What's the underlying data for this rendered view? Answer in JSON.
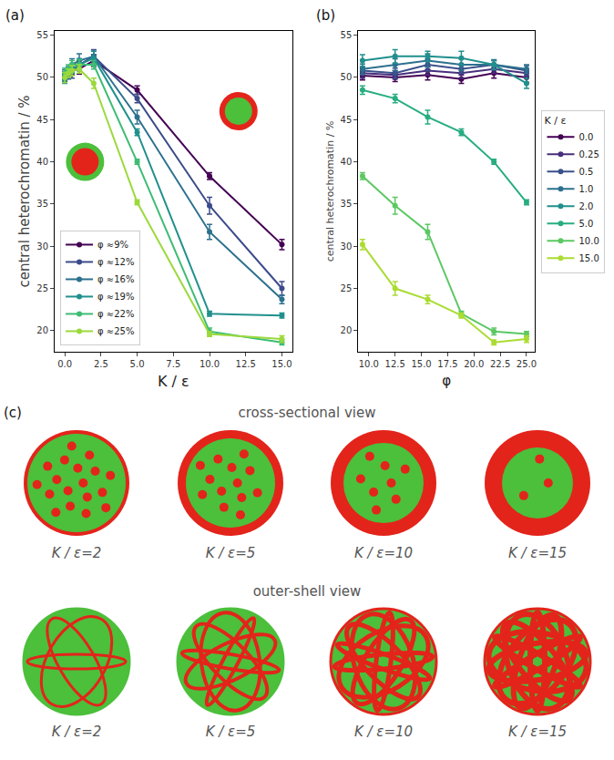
{
  "chart_data": [
    {
      "type": "line",
      "label": "(a)",
      "x_label": "K / ε",
      "y_label": "central heterochromatin / %",
      "x": [
        0,
        0.25,
        0.5,
        1,
        2,
        5,
        10,
        15
      ],
      "xlim": [
        -0.7,
        15.7
      ],
      "xticks": [
        {
          "value": 0,
          "label": "0.0"
        },
        2.5,
        {
          "value": 5,
          "label": "5.0"
        },
        7.5,
        {
          "value": 10,
          "label": "10.0"
        },
        12.5,
        {
          "value": 15,
          "label": "15.0"
        }
      ],
      "ylim": [
        17.5,
        55.5
      ],
      "yticks": [
        20,
        25,
        30,
        35,
        40,
        45,
        50,
        55
      ],
      "grid": false,
      "legend": "lower left",
      "marker": "circle",
      "line_style": "solid",
      "series": [
        {
          "name": "φ ≈9%",
          "color": "#440154",
          "values": [
            50.2,
            50.5,
            50.8,
            51.0,
            52.0,
            48.5,
            38.3,
            30.2
          ],
          "error": [
            0.5,
            0.6,
            0.5,
            0.6,
            0.7,
            0.5,
            0.4,
            0.6
          ]
        },
        {
          "name": "φ ≈12%",
          "color": "#3b4b8a",
          "values": [
            50.0,
            50.3,
            50.5,
            51.5,
            52.5,
            47.5,
            34.8,
            25.0
          ],
          "error": [
            0.5,
            0.5,
            0.6,
            0.7,
            0.8,
            0.5,
            1.0,
            0.8
          ]
        },
        {
          "name": "φ ≈16%",
          "color": "#2c718e",
          "values": [
            50.3,
            50.8,
            51.5,
            52.0,
            52.5,
            45.3,
            31.7,
            23.7
          ],
          "error": [
            0.6,
            0.5,
            0.7,
            0.8,
            0.6,
            0.8,
            0.9,
            0.5
          ]
        },
        {
          "name": "φ ≈19%",
          "color": "#21908d",
          "values": [
            49.8,
            50.5,
            51.0,
            51.5,
            52.3,
            43.5,
            22.0,
            21.8
          ],
          "error": [
            0.5,
            0.6,
            0.5,
            0.7,
            0.8,
            0.4,
            0.3,
            0.3
          ]
        },
        {
          "name": "φ ≈22%",
          "color": "#3dbc74",
          "values": [
            50.5,
            51.0,
            51.5,
            51.5,
            51.5,
            40.0,
            19.9,
            18.6
          ],
          "error": [
            0.6,
            0.5,
            0.5,
            0.6,
            0.5,
            0.3,
            0.4,
            0.3
          ]
        },
        {
          "name": "φ ≈25%",
          "color": "#9bd93c",
          "values": [
            50.0,
            50.5,
            50.8,
            51.0,
            49.3,
            35.2,
            19.6,
            19.0
          ],
          "error": [
            0.6,
            0.5,
            0.6,
            0.5,
            0.6,
            0.3,
            0.3,
            0.4
          ]
        }
      ]
    },
    {
      "type": "line",
      "label": "(b)",
      "x_label": "φ",
      "y_label": "central heterochromatin / %",
      "legend_title": "K / ε",
      "x": [
        9.4,
        12.5,
        15.6,
        18.8,
        21.9,
        25.0
      ],
      "xlim": [
        9.0,
        25.8
      ],
      "xticks": [
        {
          "value": 10,
          "label": "10.0"
        },
        12.5,
        {
          "value": 15,
          "label": "15.0"
        },
        17.5,
        {
          "value": 20,
          "label": "20.0"
        },
        22.5,
        {
          "value": 25,
          "label": "25.0"
        }
      ],
      "ylim": [
        17.5,
        55.5
      ],
      "yticks": [
        20,
        25,
        30,
        35,
        40,
        45,
        50,
        55
      ],
      "grid": false,
      "legend": "right",
      "marker": "circle",
      "line_style": "solid",
      "series": [
        {
          "name": "0.0",
          "color": "#440154",
          "values": [
            50.2,
            50.0,
            50.3,
            49.8,
            50.5,
            50.0
          ],
          "error": [
            0.5,
            0.5,
            0.6,
            0.5,
            0.6,
            0.6
          ]
        },
        {
          "name": "0.25",
          "color": "#472f7d",
          "values": [
            50.5,
            50.3,
            50.8,
            50.5,
            51.0,
            50.5
          ],
          "error": [
            0.6,
            0.5,
            0.5,
            0.6,
            0.5,
            0.5
          ]
        },
        {
          "name": "0.5",
          "color": "#3b518b",
          "values": [
            50.8,
            50.5,
            51.5,
            51.0,
            51.5,
            50.8
          ],
          "error": [
            0.5,
            0.6,
            0.7,
            0.5,
            0.5,
            0.6
          ]
        },
        {
          "name": "1.0",
          "color": "#2c718e",
          "values": [
            51.0,
            51.5,
            52.0,
            51.5,
            51.5,
            51.0
          ],
          "error": [
            0.6,
            0.7,
            0.8,
            0.7,
            0.6,
            0.5
          ]
        },
        {
          "name": "2.0",
          "color": "#21908d",
          "values": [
            52.0,
            52.5,
            52.5,
            52.3,
            51.5,
            49.3
          ],
          "error": [
            0.7,
            0.8,
            0.6,
            0.8,
            0.5,
            0.6
          ]
        },
        {
          "name": "5.0",
          "color": "#27ad81",
          "values": [
            48.5,
            47.5,
            45.3,
            43.5,
            40.0,
            35.2
          ],
          "error": [
            0.5,
            0.5,
            0.8,
            0.4,
            0.3,
            0.3
          ]
        },
        {
          "name": "10.0",
          "color": "#5cc863",
          "values": [
            38.3,
            34.8,
            31.7,
            22.0,
            19.9,
            19.6
          ],
          "error": [
            0.4,
            1.0,
            0.9,
            0.3,
            0.4,
            0.3
          ]
        },
        {
          "name": "15.0",
          "color": "#aadc32",
          "values": [
            30.2,
            25.0,
            23.7,
            21.8,
            18.6,
            19.0
          ],
          "error": [
            0.6,
            0.8,
            0.5,
            0.3,
            0.3,
            0.4
          ]
        }
      ]
    }
  ],
  "panel_c": {
    "label": "(c)",
    "rows": [
      {
        "title": "cross-sectional view",
        "images": [
          "K / ε=2",
          "K / ε=5",
          "K / ε=10",
          "K / ε=15"
        ]
      },
      {
        "title": "outer-shell view",
        "images": [
          "K / ε=2",
          "K / ε=5",
          "K / ε=10",
          "K / ε=15"
        ]
      }
    ]
  }
}
